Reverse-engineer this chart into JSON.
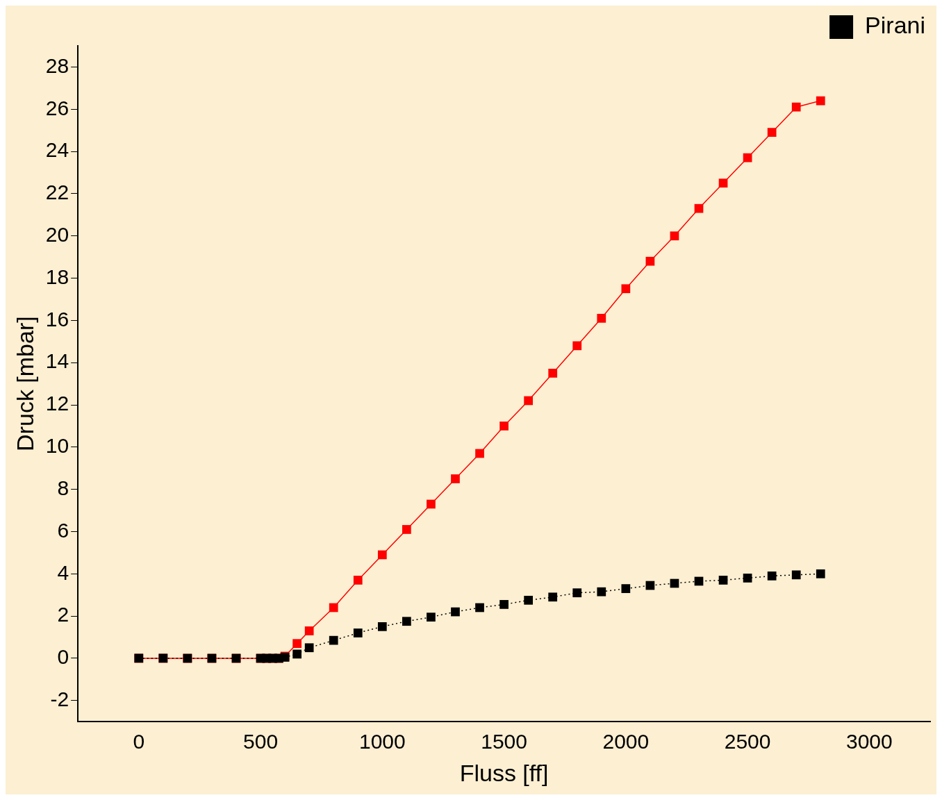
{
  "chart_data": {
    "type": "line",
    "xlabel": "Fluss [ff]",
    "ylabel": "Druck [mbar]",
    "xlim": [
      -250,
      3250
    ],
    "xticks": [
      0,
      500,
      1000,
      1500,
      2000,
      2500,
      3000
    ],
    "ylim": [
      -3,
      29
    ],
    "yticks": [
      -2,
      0,
      2,
      4,
      6,
      8,
      10,
      12,
      14,
      16,
      18,
      20,
      22,
      24,
      26,
      28
    ],
    "grid": false,
    "legend": "top right",
    "marker": "square",
    "x": [
      0,
      100,
      200,
      300,
      400,
      500,
      525,
      550,
      575,
      600,
      650,
      700,
      800,
      900,
      1000,
      1100,
      1200,
      1300,
      1400,
      1500,
      1600,
      1700,
      1800,
      1900,
      2000,
      2100,
      2200,
      2300,
      2400,
      2500,
      2600,
      2700,
      2800
    ],
    "series": [
      {
        "color": "#ff0000",
        "line_style": "solid",
        "values": [
          0,
          0,
          0,
          0,
          0,
          0,
          0,
          0,
          0,
          0.1,
          0.7,
          1.3,
          2.4,
          3.7,
          4.9,
          6.1,
          7.3,
          8.5,
          9.7,
          11.0,
          12.2,
          13.5,
          14.8,
          16.1,
          17.5,
          18.8,
          20.0,
          21.3,
          22.5,
          23.7,
          24.9,
          26.1,
          26.4
        ]
      },
      {
        "name": "Pirani",
        "color": "#000000",
        "line_style": "dotted",
        "values": [
          0,
          0,
          0,
          0,
          0,
          0,
          0,
          0,
          0,
          0.05,
          0.2,
          0.5,
          0.85,
          1.2,
          1.5,
          1.75,
          1.95,
          2.2,
          2.4,
          2.55,
          2.75,
          2.9,
          3.1,
          3.15,
          3.3,
          3.45,
          3.55,
          3.65,
          3.7,
          3.8,
          3.9,
          3.95,
          4.0
        ]
      }
    ]
  }
}
